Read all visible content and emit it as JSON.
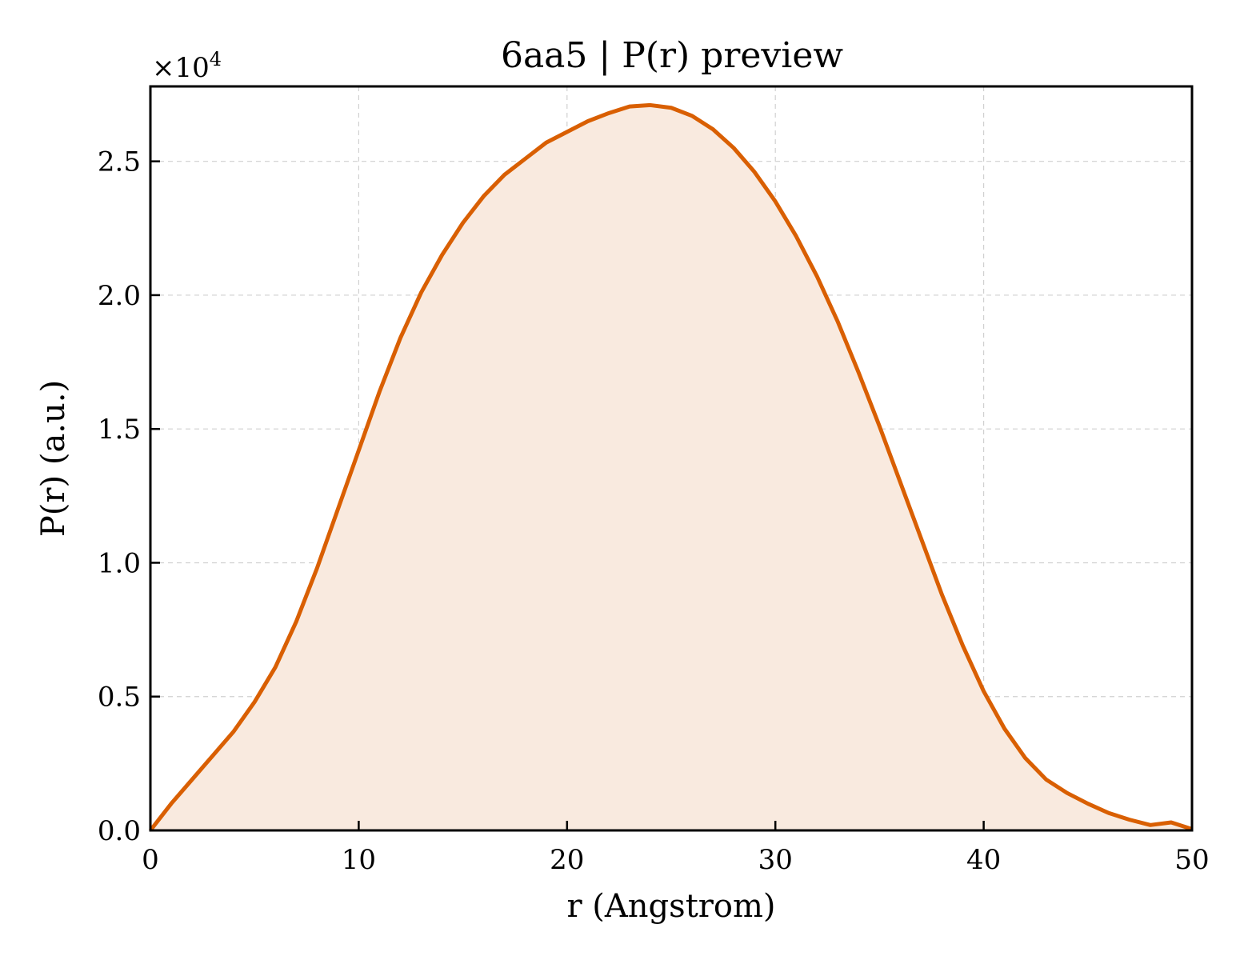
{
  "chart_data": {
    "type": "area",
    "title": "6aa5 | P(r) preview",
    "xlabel": "r (Angstrom)",
    "ylabel": "P(r) (a.u.)",
    "y_multiplier_base": "×10",
    "y_multiplier_exp": "4",
    "xlim": [
      0,
      50
    ],
    "ylim": [
      0,
      2.78
    ],
    "x_ticks": [
      0,
      10,
      20,
      30,
      40,
      50
    ],
    "x_tick_labels": [
      "0",
      "10",
      "20",
      "30",
      "40",
      "50"
    ],
    "y_ticks": [
      0,
      0.5,
      1.0,
      1.5,
      2.0,
      2.5
    ],
    "y_tick_labels": [
      "0.0",
      "0.5",
      "1.0",
      "1.5",
      "2.0",
      "2.5"
    ],
    "grid": true,
    "line_color": "#d95f02",
    "fill_color": "#f9eadf",
    "series": [
      {
        "x": [
          0,
          1,
          2,
          3,
          4,
          5,
          6,
          7,
          8,
          9,
          10,
          11,
          12,
          13,
          14,
          15,
          16,
          17,
          18,
          19,
          20,
          21,
          22,
          23,
          24,
          25,
          26,
          27,
          28,
          29,
          30,
          31,
          32,
          33,
          34,
          35,
          36,
          37,
          38,
          39,
          40,
          41,
          42,
          43,
          44,
          45,
          46,
          47,
          48,
          49,
          50
        ],
        "y": [
          0,
          0.1,
          0.19,
          0.28,
          0.37,
          0.48,
          0.61,
          0.78,
          0.98,
          1.2,
          1.42,
          1.64,
          1.84,
          2.01,
          2.15,
          2.27,
          2.37,
          2.45,
          2.51,
          2.57,
          2.61,
          2.65,
          2.68,
          2.705,
          2.71,
          2.7,
          2.67,
          2.62,
          2.55,
          2.46,
          2.35,
          2.22,
          2.07,
          1.9,
          1.71,
          1.51,
          1.3,
          1.09,
          0.88,
          0.69,
          0.52,
          0.38,
          0.27,
          0.19,
          0.14,
          0.1,
          0.065,
          0.04,
          0.02,
          0.03,
          0.005
        ]
      }
    ]
  }
}
